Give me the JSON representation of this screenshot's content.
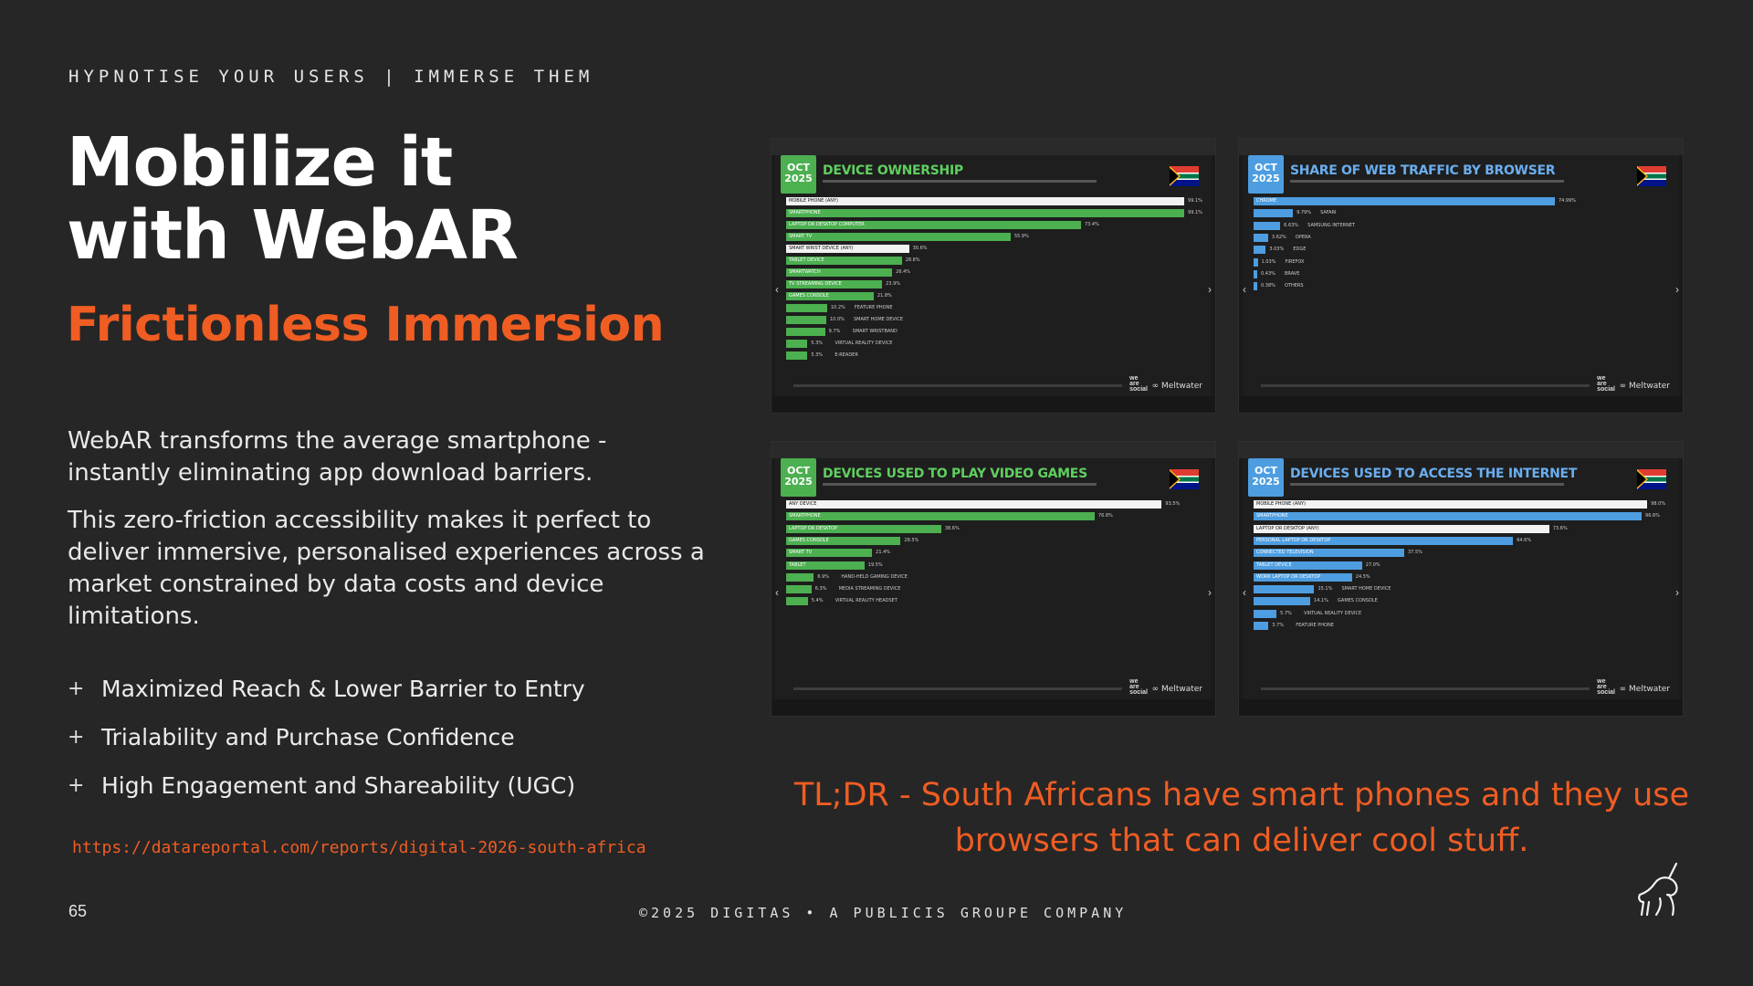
{
  "eyebrow": "HYPNOTISE YOUR USERS | IMMERSE THEM",
  "title_line1": "Mobilize it",
  "title_line2": "with WebAR",
  "subtitle": "Frictionless Immersion",
  "paragraph1": "WebAR transforms the average smartphone - instantly eliminating app download barriers.",
  "paragraph2": "This zero-friction accessibility makes it perfect to deliver immersive, personalised experiences across a market constrained by data costs and device limitations.",
  "bullets": [
    "Maximized Reach & Lower Barrier to Entry",
    "Trialability and Purchase Confidence",
    "High Engagement and Shareability (UGC)"
  ],
  "link": "https://datareportal.com/reports/digital-2026-south-africa",
  "page_number": "65",
  "footer": "©2025 DIGITAS • A PUBLICIS GROUPE COMPANY",
  "tldr": "TL;DR - South Africans have smart phones and they use browsers that can deliver cool stuff.",
  "thumbnails": [
    {
      "badge": "OCT\n2025",
      "title": "DEVICE OWNERSHIP",
      "color": "#4caf50",
      "brand": "Meltwater",
      "bars": [
        {
          "label": "MOBILE PHONE (ANY)",
          "value": 99.1,
          "display": "99.1%",
          "hl": true
        },
        {
          "label": "SMARTPHONE",
          "value": 99.1,
          "display": "99.1%"
        },
        {
          "label": "LAPTOP OR DESKTOP COMPUTER",
          "value": 73.4,
          "display": "73.4%"
        },
        {
          "label": "SMART TV",
          "value": 55.9,
          "display": "55.9%"
        },
        {
          "label": "SMART WRIST DEVICE (ANY)",
          "value": 30.6,
          "display": "30.6%",
          "hl": true
        },
        {
          "label": "TABLET DEVICE",
          "value": 28.8,
          "display": "28.8%"
        },
        {
          "label": "SMARTWATCH",
          "value": 26.4,
          "display": "26.4%"
        },
        {
          "label": "TV STREAMING DEVICE",
          "value": 23.9,
          "display": "23.9%"
        },
        {
          "label": "GAMES CONSOLE",
          "value": 21.8,
          "display": "21.8%"
        },
        {
          "label": "FEATURE PHONE",
          "value": 10.2,
          "display": "10.2%"
        },
        {
          "label": "SMART HOME DEVICE",
          "value": 10.0,
          "display": "10.0%"
        },
        {
          "label": "SMART WRISTBAND",
          "value": 9.7,
          "display": "9.7%"
        },
        {
          "label": "VIRTUAL REALITY DEVICE",
          "value": 5.3,
          "display": "5.3%"
        },
        {
          "label": "E-READER",
          "value": 5.3,
          "display": "5.3%"
        }
      ]
    },
    {
      "badge": "OCT\n2025",
      "title": "SHARE OF WEB TRAFFIC BY BROWSER",
      "color": "#4d9de0",
      "brand": "Meltwater",
      "bars": [
        {
          "label": "CHROME",
          "value": 74.99,
          "display": "74.99%"
        },
        {
          "label": "SAFARI",
          "value": 9.79,
          "display": "9.79%"
        },
        {
          "label": "SAMSUNG INTERNET",
          "value": 6.63,
          "display": "6.63%"
        },
        {
          "label": "OPERA",
          "value": 3.62,
          "display": "3.62%"
        },
        {
          "label": "EDGE",
          "value": 3.03,
          "display": "3.03%"
        },
        {
          "label": "FIREFOX",
          "value": 1.03,
          "display": "1.03%"
        },
        {
          "label": "BRAVE",
          "value": 0.43,
          "display": "0.43%"
        },
        {
          "label": "OTHERS",
          "value": 0.38,
          "display": "0.38%"
        }
      ]
    },
    {
      "badge": "OCT\n2025",
      "title": "DEVICES USED TO PLAY VIDEO GAMES",
      "color": "#4caf50",
      "brand": "Meltwater",
      "bars": [
        {
          "label": "ANY DEVICE",
          "value": 93.5,
          "display": "93.5%",
          "hl": true
        },
        {
          "label": "SMARTPHONE",
          "value": 76.8,
          "display": "76.8%"
        },
        {
          "label": "LAPTOP OR DESKTOP",
          "value": 38.6,
          "display": "38.6%"
        },
        {
          "label": "GAMES CONSOLE",
          "value": 28.5,
          "display": "28.5%"
        },
        {
          "label": "SMART TV",
          "value": 21.4,
          "display": "21.4%"
        },
        {
          "label": "TABLET",
          "value": 19.5,
          "display": "19.5%"
        },
        {
          "label": "HAND-HELD GAMING DEVICE",
          "value": 6.9,
          "display": "6.9%"
        },
        {
          "label": "MEDIA STREAMING DEVICE",
          "value": 6.3,
          "display": "6.3%"
        },
        {
          "label": "VIRTUAL REALITY HEADSET",
          "value": 5.4,
          "display": "5.4%"
        }
      ]
    },
    {
      "badge": "OCT\n2025",
      "title": "DEVICES USED TO ACCESS THE INTERNET",
      "color": "#4d9de0",
      "brand": "Meltwater",
      "bars": [
        {
          "label": "MOBILE PHONE (ANY)",
          "value": 98.0,
          "display": "98.0%",
          "hl": true
        },
        {
          "label": "SMARTPHONE",
          "value": 96.6,
          "display": "96.6%"
        },
        {
          "label": "LAPTOP OR DESKTOP (ANY)",
          "value": 73.6,
          "display": "73.6%",
          "hl": true
        },
        {
          "label": "PERSONAL LAPTOP OR DESKTOP",
          "value": 64.6,
          "display": "64.6%"
        },
        {
          "label": "CONNECTED TELEVISION",
          "value": 37.5,
          "display": "37.5%"
        },
        {
          "label": "TABLET DEVICE",
          "value": 27.0,
          "display": "27.0%"
        },
        {
          "label": "WORK LAPTOP OR DESKTOP",
          "value": 24.5,
          "display": "24.5%"
        },
        {
          "label": "SMART HOME DEVICE",
          "value": 15.1,
          "display": "15.1%"
        },
        {
          "label": "GAMES CONSOLE",
          "value": 14.1,
          "display": "14.1%"
        },
        {
          "label": "VIRTUAL REALITY DEVICE",
          "value": 5.7,
          "display": "5.7%"
        },
        {
          "label": "FEATURE PHONE",
          "value": 3.7,
          "display": "3.7%"
        }
      ]
    }
  ]
}
